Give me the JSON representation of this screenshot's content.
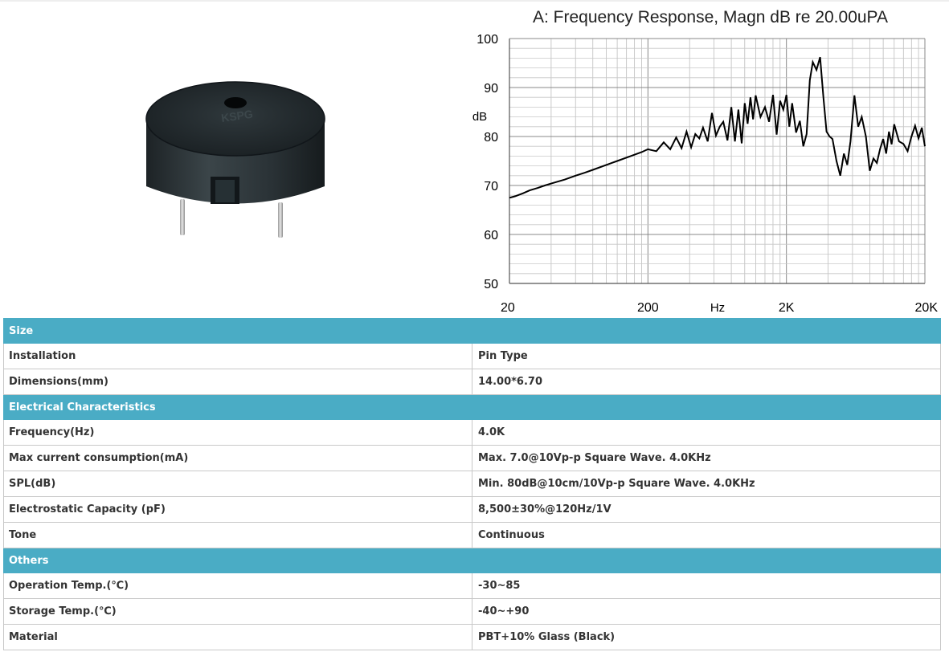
{
  "product": {
    "image_alt": "piezo buzzer",
    "image_text": "KSPG"
  },
  "chart_data": {
    "type": "line",
    "title": "A: Frequency Response, Magn dB re 20.00uPA",
    "xlabel": "Hz",
    "ylabel": "dB",
    "x_scale": "log",
    "xlim": [
      20,
      20000
    ],
    "ylim": [
      50,
      100
    ],
    "x_tick_labels": [
      "20",
      "200",
      "2K",
      "20K"
    ],
    "y_tick_labels": [
      "100",
      "90",
      "80",
      "70",
      "60",
      "50"
    ],
    "grid": true,
    "series": [
      {
        "x": [
          20,
          22,
          25,
          28,
          32,
          36,
          40,
          50,
          60,
          70,
          80,
          100,
          120,
          150,
          180,
          200,
          230,
          260,
          290,
          320,
          350,
          380,
          410,
          440,
          470,
          500,
          540,
          580,
          620,
          660,
          700,
          750,
          800,
          850,
          900,
          950,
          1000,
          1050,
          1100,
          1150,
          1200,
          1300,
          1400,
          1500,
          1600,
          1700,
          1800,
          1900,
          2000,
          2100,
          2200,
          2350,
          2500,
          2650,
          2800,
          2950,
          3100,
          3300,
          3500,
          3700,
          3900,
          4100,
          4300,
          4600,
          4900,
          5200,
          5500,
          5800,
          6200,
          6600,
          7000,
          7500,
          8000,
          8500,
          9000,
          9500,
          10000,
          10500,
          11000,
          11500,
          12000,
          13000,
          14000,
          15000,
          16000,
          17000,
          18000,
          19000,
          20000
        ],
        "y": [
          67.5,
          67.8,
          68.4,
          69.0,
          69.5,
          70.0,
          70.4,
          71.2,
          72.0,
          72.6,
          73.2,
          74.2,
          75.0,
          76.0,
          76.8,
          77.4,
          77.0,
          78.8,
          77.4,
          79.8,
          77.6,
          81.0,
          77.8,
          80.5,
          79.6,
          81.8,
          79.0,
          84.8,
          80.2,
          82.0,
          83.0,
          79.2,
          86.0,
          79.0,
          85.5,
          78.6,
          86.8,
          82.6,
          88.0,
          83.5,
          88.4,
          84.0,
          86.0,
          83.0,
          88.5,
          80.4,
          87.3,
          85.5,
          88.5,
          82.0,
          86.8,
          80.8,
          83.2,
          78.0,
          80.5,
          91.5,
          95.2,
          93.6,
          96.2,
          88.0,
          81.0,
          80.0,
          79.5,
          75.0,
          72.0,
          76.5,
          74.2,
          79.0,
          88.4,
          82.0,
          84.0,
          80.0,
          73.0,
          75.5,
          74.6,
          77.5,
          79.5,
          76.5,
          81.0,
          78.4,
          82.5,
          79.0,
          78.5,
          77.0,
          80.0,
          82.2,
          79.6,
          81.8,
          78.0
        ]
      }
    ]
  },
  "table": {
    "sections": [
      {
        "title": "Size",
        "rows": [
          {
            "label": "Installation",
            "value": "Pin Type"
          },
          {
            "label": "Dimensions(mm)",
            "value": "14.00*6.70"
          }
        ]
      },
      {
        "title": "Electrical Characteristics",
        "rows": [
          {
            "label": "Frequency(Hz)",
            "value": "4.0K"
          },
          {
            "label": "Max current consumption(mA)",
            "value": "Max. 7.0@10Vp-p Square Wave. 4.0KHz"
          },
          {
            "label": "SPL(dB)",
            "value": "Min. 80dB@10cm/10Vp-p Square Wave. 4.0KHz"
          },
          {
            "label": "Electrostatic Capacity (pF)",
            "value": "8,500±30%@120Hz/1V"
          },
          {
            "label": "Tone",
            "value": "Continuous"
          }
        ]
      },
      {
        "title": "Others",
        "rows": [
          {
            "label": "Operation Temp.(℃)",
            "value": "-30~85"
          },
          {
            "label": "Storage Temp.(℃)",
            "value": "-40~+90"
          },
          {
            "label": "Material",
            "value": "PBT+10% Glass (Black)"
          }
        ]
      }
    ]
  },
  "colors": {
    "section_header_bg": "#4aacc5",
    "section_header_text": "#ffffff",
    "cell_border": "#c8c8c8",
    "cell_text": "#333333"
  }
}
